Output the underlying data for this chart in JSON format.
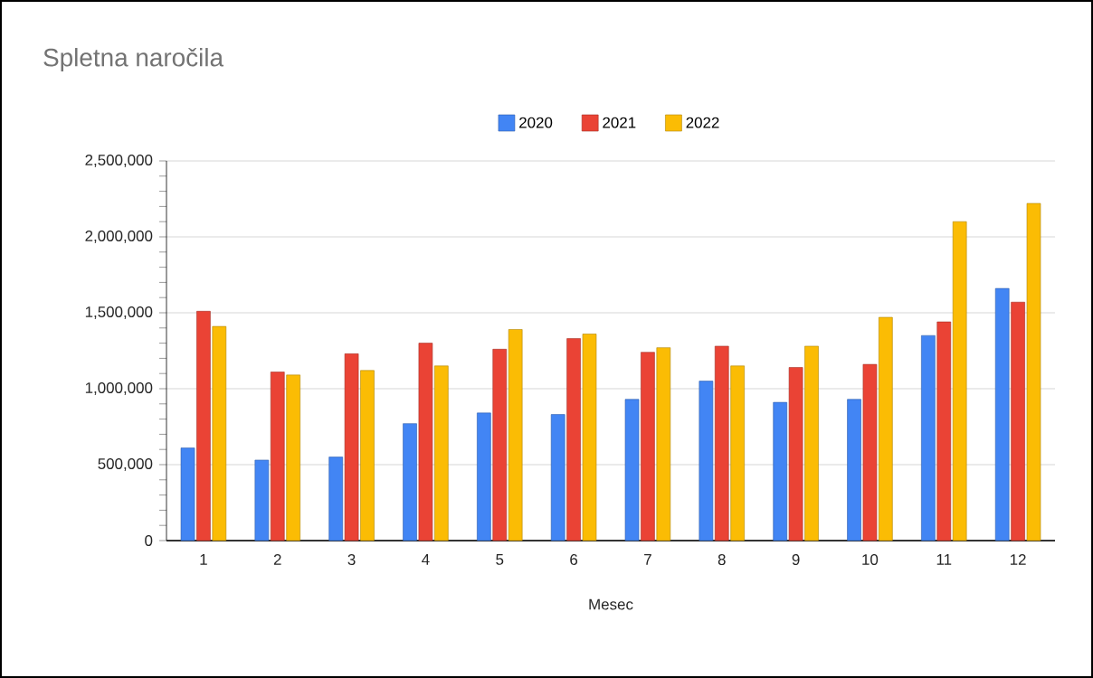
{
  "chart_data": {
    "type": "bar",
    "title": "Spletna naročila",
    "xlabel": "Mesec",
    "categories": [
      "1",
      "2",
      "3",
      "4",
      "5",
      "6",
      "7",
      "8",
      "9",
      "10",
      "11",
      "12"
    ],
    "series": [
      {
        "name": "2020",
        "color": "#4285f4",
        "values": [
          610000,
          530000,
          550000,
          770000,
          840000,
          830000,
          930000,
          1050000,
          910000,
          930000,
          1350000,
          1660000
        ]
      },
      {
        "name": "2021",
        "color": "#ea4335",
        "values": [
          1510000,
          1110000,
          1230000,
          1300000,
          1260000,
          1330000,
          1240000,
          1280000,
          1140000,
          1160000,
          1440000,
          1570000
        ]
      },
      {
        "name": "2022",
        "color": "#fbbc04",
        "values": [
          1410000,
          1090000,
          1120000,
          1150000,
          1390000,
          1360000,
          1270000,
          1150000,
          1280000,
          1470000,
          2100000,
          2220000
        ]
      }
    ],
    "ylim": [
      0,
      2500000
    ],
    "yticks": [
      0,
      {
        "value": 500000,
        "label": "500,000"
      },
      {
        "value": 1000000,
        "label": "1,000,000"
      },
      {
        "value": 1500000,
        "label": "1,500,000"
      },
      {
        "value": 2000000,
        "label": "2,000,000"
      },
      {
        "value": 2500000,
        "label": "2,500,000"
      }
    ],
    "grid": "y",
    "legend": "top"
  }
}
